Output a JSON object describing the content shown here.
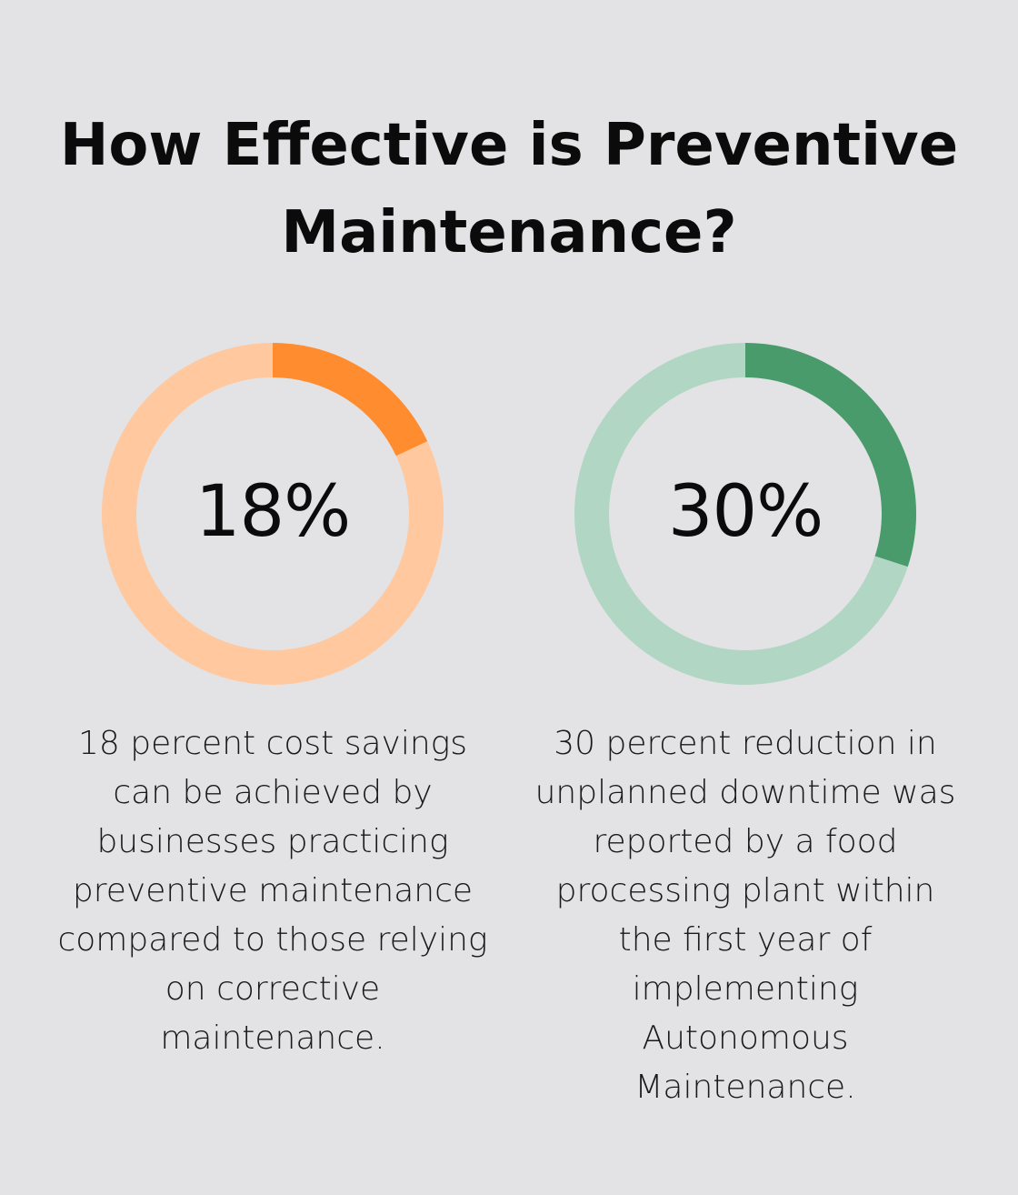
{
  "title_lines": [
    "How Effective is Preventive",
    "Maintenance?"
  ],
  "chart_data": [
    {
      "type": "pie",
      "variant": "donut",
      "value": 18,
      "total": 100,
      "label": "18%",
      "colors": {
        "filled": "#ff8c2f",
        "track": "#ffc89e"
      },
      "description_lines": [
        "18 percent cost savings",
        "can be achieved by",
        "businesses practicing",
        "preventive maintenance",
        "compared to those relying",
        "on corrective",
        "maintenance."
      ]
    },
    {
      "type": "pie",
      "variant": "donut",
      "value": 30,
      "total": 100,
      "label": "30%",
      "colors": {
        "filled": "#4a9b6c",
        "track": "#b1d6c4"
      },
      "description_lines": [
        "30 percent reduction in",
        "unplanned downtime was",
        "reported by a food",
        "processing plant within",
        "the first year of",
        "implementing",
        "Autonomous",
        "Maintenance."
      ]
    }
  ]
}
